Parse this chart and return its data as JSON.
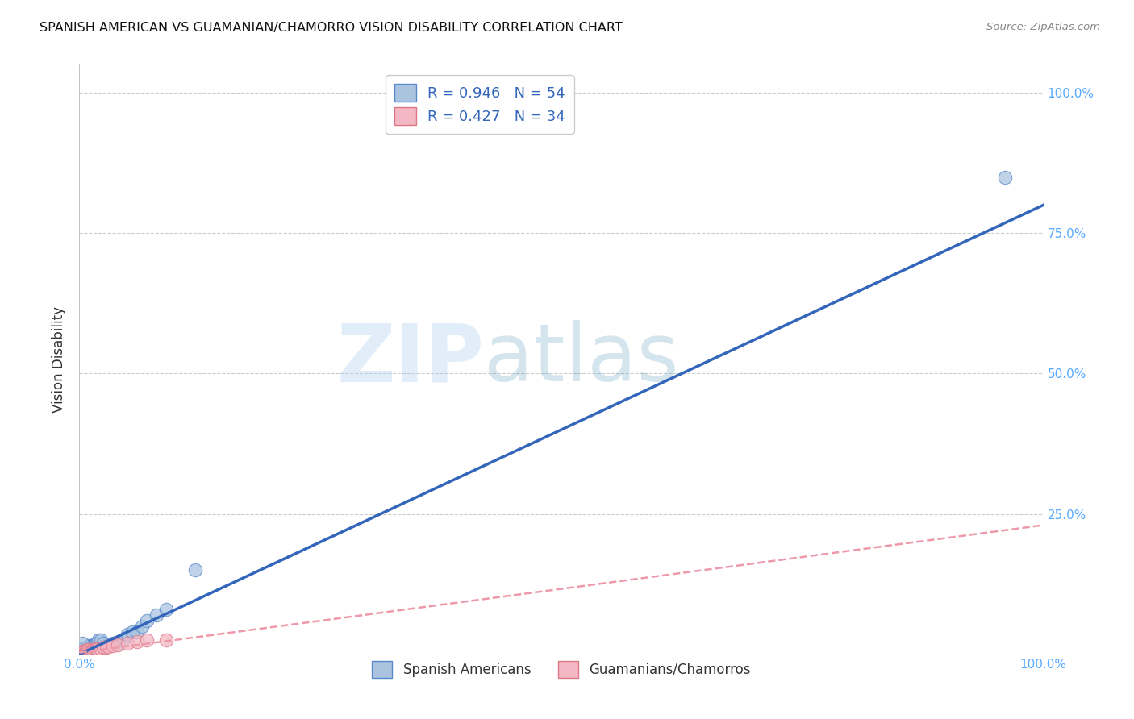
{
  "title": "SPANISH AMERICAN VS GUAMANIAN/CHAMORRO VISION DISABILITY CORRELATION CHART",
  "source": "Source: ZipAtlas.com",
  "ylabel": "Vision Disability",
  "background_color": "#ffffff",
  "grid_color": "#cccccc",
  "watermark_zip": "ZIP",
  "watermark_atlas": "atlas",
  "blue_r": 0.946,
  "blue_n": 54,
  "pink_r": 0.427,
  "pink_n": 34,
  "blue_color": "#aac4e0",
  "blue_edge_color": "#5588cc",
  "blue_line_color": "#3366bb",
  "pink_color": "#f4b8c4",
  "pink_edge_color": "#dd7788",
  "pink_line_color": "#cc4466",
  "pink_dash_color": "#ee99aa",
  "legend_label_blue": "Spanish Americans",
  "legend_label_pink": "Guamanians/Chamorros",
  "axis_color": "#55aaff",
  "label_color": "#55aaff",
  "blue_scatter_x": [
    0.001,
    0.002,
    0.002,
    0.003,
    0.003,
    0.003,
    0.004,
    0.004,
    0.004,
    0.005,
    0.005,
    0.005,
    0.006,
    0.006,
    0.006,
    0.007,
    0.007,
    0.007,
    0.008,
    0.008,
    0.009,
    0.009,
    0.01,
    0.01,
    0.01,
    0.011,
    0.011,
    0.012,
    0.012,
    0.013,
    0.013,
    0.014,
    0.015,
    0.015,
    0.016,
    0.017,
    0.018,
    0.02,
    0.022,
    0.025,
    0.03,
    0.035,
    0.04,
    0.045,
    0.05,
    0.055,
    0.06,
    0.065,
    0.07,
    0.08,
    0.09,
    0.12,
    0.96,
    0.003
  ],
  "blue_scatter_y": [
    0.005,
    0.005,
    0.008,
    0.005,
    0.007,
    0.01,
    0.005,
    0.008,
    0.01,
    0.005,
    0.007,
    0.01,
    0.005,
    0.007,
    0.01,
    0.005,
    0.008,
    0.012,
    0.005,
    0.01,
    0.007,
    0.012,
    0.005,
    0.008,
    0.015,
    0.007,
    0.012,
    0.008,
    0.015,
    0.008,
    0.015,
    0.015,
    0.007,
    0.015,
    0.015,
    0.02,
    0.02,
    0.025,
    0.025,
    0.02,
    0.015,
    0.02,
    0.02,
    0.025,
    0.035,
    0.04,
    0.04,
    0.05,
    0.06,
    0.07,
    0.08,
    0.15,
    0.85,
    0.02
  ],
  "pink_scatter_x": [
    0.001,
    0.002,
    0.003,
    0.003,
    0.004,
    0.005,
    0.005,
    0.006,
    0.007,
    0.007,
    0.008,
    0.008,
    0.009,
    0.01,
    0.01,
    0.011,
    0.012,
    0.013,
    0.014,
    0.015,
    0.016,
    0.017,
    0.018,
    0.02,
    0.022,
    0.025,
    0.028,
    0.03,
    0.035,
    0.04,
    0.05,
    0.06,
    0.07,
    0.09
  ],
  "pink_scatter_y": [
    0.003,
    0.004,
    0.003,
    0.005,
    0.005,
    0.003,
    0.006,
    0.005,
    0.004,
    0.007,
    0.005,
    0.008,
    0.006,
    0.005,
    0.008,
    0.006,
    0.007,
    0.006,
    0.008,
    0.007,
    0.008,
    0.009,
    0.009,
    0.01,
    0.01,
    0.012,
    0.013,
    0.014,
    0.015,
    0.017,
    0.02,
    0.022,
    0.025,
    0.025
  ],
  "blue_line_x0": 0.0,
  "blue_line_y0": 0.0,
  "blue_line_x1": 1.0,
  "blue_line_y1": 0.8,
  "pink_line_x0": 0.0,
  "pink_line_y0": 0.003,
  "pink_line_x1": 1.0,
  "pink_line_y1": 0.23,
  "xlim": [
    0.0,
    1.0
  ],
  "ylim": [
    0.0,
    1.05
  ],
  "xtick_pos": [
    0.0,
    1.0
  ],
  "xtick_labels": [
    "0.0%",
    "100.0%"
  ],
  "ytick_pos": [
    0.25,
    0.5,
    0.75,
    1.0
  ],
  "ytick_labels": [
    "25.0%",
    "50.0%",
    "75.0%",
    "100.0%"
  ]
}
